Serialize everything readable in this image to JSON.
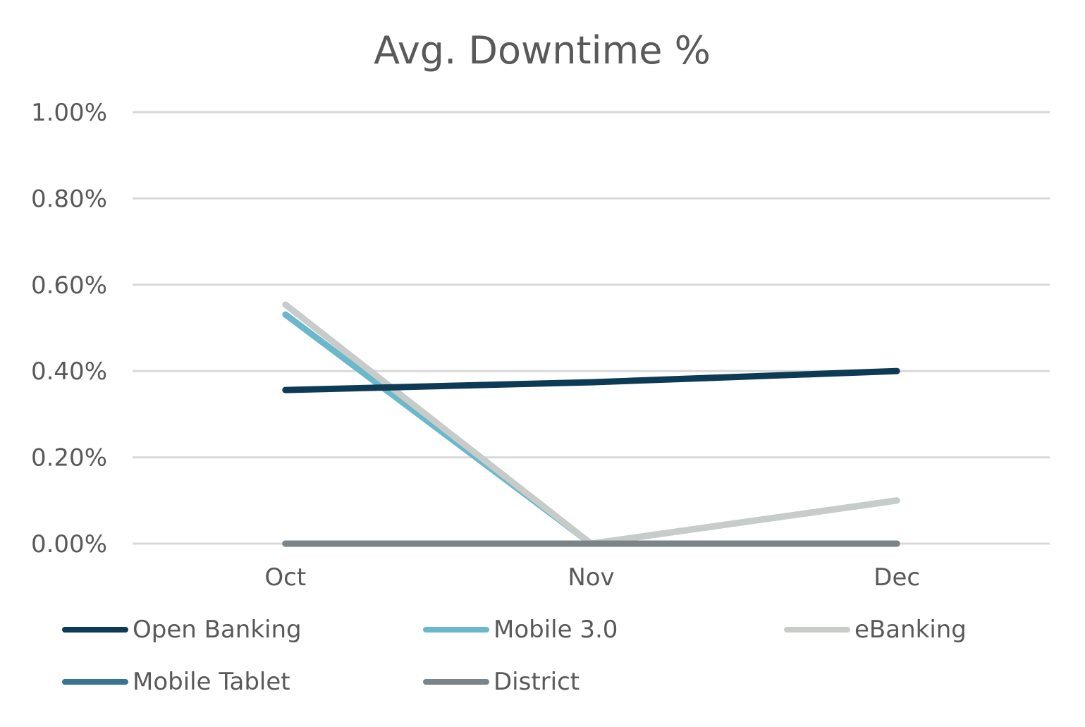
{
  "chart_data": {
    "type": "line",
    "title": "Avg. Downtime %",
    "categories": [
      "Oct",
      "Nov",
      "Dec"
    ],
    "ylim": [
      0,
      1.0
    ],
    "yticks": [
      "0.00%",
      "0.20%",
      "0.40%",
      "0.60%",
      "0.80%",
      "1.00%"
    ],
    "ytick_values": [
      0,
      0.2,
      0.4,
      0.6,
      0.8,
      1.0
    ],
    "grid": true,
    "legend_position": "bottom",
    "series": [
      {
        "name": "Open Banking",
        "color": "#0d3a55",
        "values": [
          0.356,
          0.374,
          0.4
        ]
      },
      {
        "name": "Mobile 3.0",
        "color": "#6bb8cc",
        "values": [
          0.531,
          0.0,
          0.1
        ]
      },
      {
        "name": "eBanking",
        "color": "#c8ccc9",
        "values": [
          0.554,
          0.0,
          0.1
        ]
      },
      {
        "name": "Mobile Tablet",
        "color": "#3a7494",
        "values": [
          0.0,
          0.0,
          0.0
        ]
      },
      {
        "name": "District",
        "color": "#7b8488",
        "values": [
          0.0,
          0.0,
          0.0
        ]
      }
    ]
  }
}
